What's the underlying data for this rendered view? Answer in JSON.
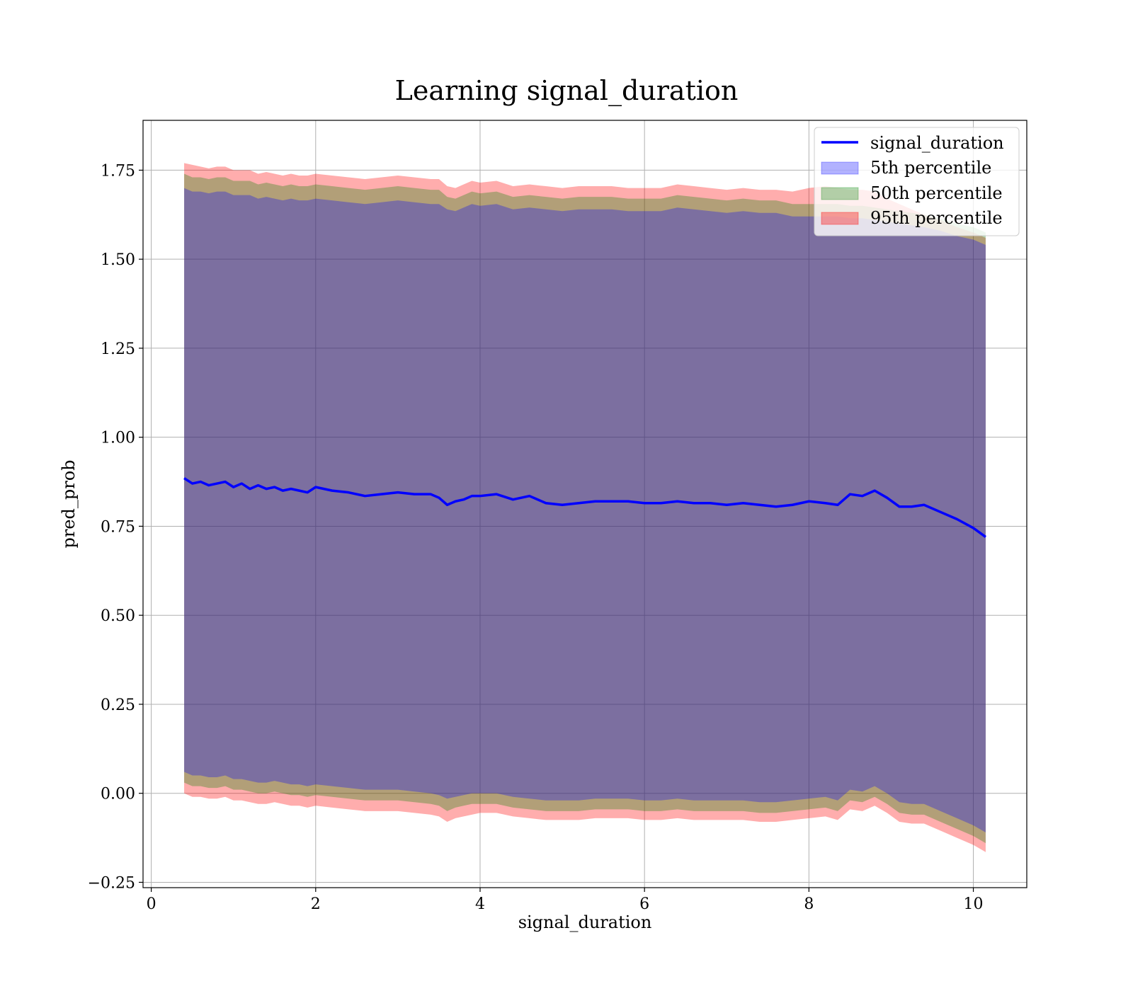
{
  "chart_data": {
    "type": "line",
    "title": "Learning signal_duration",
    "xlabel": "signal_duration",
    "ylabel": "pred_prob",
    "xlim": [
      -0.1,
      10.65
    ],
    "ylim": [
      -0.265,
      1.89
    ],
    "x_ticks": [
      0,
      2,
      4,
      6,
      8,
      10
    ],
    "y_ticks": [
      -0.25,
      0.0,
      0.25,
      0.5,
      0.75,
      1.0,
      1.25,
      1.5,
      1.75
    ],
    "x_tick_labels": [
      "0",
      "2",
      "4",
      "6",
      "8",
      "10"
    ],
    "y_tick_labels": [
      "−0.25",
      "0.00",
      "0.25",
      "0.50",
      "0.75",
      "1.00",
      "1.25",
      "1.50",
      "1.75"
    ],
    "grid": true,
    "legend_position": "top-right",
    "colors": {
      "line": "#0000ff",
      "band_5th": "#0000ff",
      "band_50th": "#008000",
      "band_95th": "#ff0000"
    },
    "x": [
      0.4,
      0.5,
      0.6,
      0.7,
      0.8,
      0.9,
      1.0,
      1.1,
      1.2,
      1.3,
      1.4,
      1.5,
      1.6,
      1.7,
      1.8,
      1.9,
      2.0,
      2.2,
      2.4,
      2.6,
      2.8,
      3.0,
      3.2,
      3.4,
      3.5,
      3.6,
      3.7,
      3.8,
      3.9,
      4.0,
      4.2,
      4.4,
      4.6,
      4.8,
      5.0,
      5.2,
      5.4,
      5.6,
      5.8,
      6.0,
      6.2,
      6.4,
      6.6,
      6.8,
      7.0,
      7.2,
      7.4,
      7.6,
      7.8,
      8.0,
      8.2,
      8.35,
      8.5,
      8.65,
      8.8,
      8.95,
      9.1,
      9.25,
      9.4,
      9.6,
      9.8,
      10.0,
      10.15
    ],
    "series": [
      {
        "name": "signal_duration",
        "values": [
          0.885,
          0.87,
          0.875,
          0.865,
          0.87,
          0.875,
          0.86,
          0.87,
          0.855,
          0.865,
          0.855,
          0.86,
          0.85,
          0.855,
          0.85,
          0.845,
          0.86,
          0.85,
          0.845,
          0.835,
          0.84,
          0.845,
          0.84,
          0.84,
          0.83,
          0.81,
          0.82,
          0.825,
          0.835,
          0.835,
          0.84,
          0.825,
          0.835,
          0.815,
          0.81,
          0.815,
          0.82,
          0.82,
          0.82,
          0.815,
          0.815,
          0.82,
          0.815,
          0.815,
          0.81,
          0.815,
          0.81,
          0.805,
          0.81,
          0.82,
          0.815,
          0.81,
          0.84,
          0.835,
          0.85,
          0.83,
          0.805,
          0.805,
          0.81,
          0.79,
          0.77,
          0.745,
          0.72
        ]
      },
      {
        "name": "5th percentile",
        "lower": [
          0.06,
          0.05,
          0.05,
          0.045,
          0.045,
          0.05,
          0.04,
          0.04,
          0.035,
          0.03,
          0.03,
          0.035,
          0.03,
          0.025,
          0.025,
          0.02,
          0.025,
          0.02,
          0.015,
          0.01,
          0.01,
          0.01,
          0.005,
          0.0,
          -0.005,
          -0.015,
          -0.01,
          -0.005,
          0.0,
          0.0,
          0.0,
          -0.01,
          -0.015,
          -0.02,
          -0.02,
          -0.02,
          -0.015,
          -0.015,
          -0.015,
          -0.02,
          -0.02,
          -0.015,
          -0.02,
          -0.02,
          -0.02,
          -0.02,
          -0.025,
          -0.025,
          -0.02,
          -0.015,
          -0.01,
          -0.02,
          0.01,
          0.005,
          0.02,
          0.0,
          -0.025,
          -0.03,
          -0.03,
          -0.05,
          -0.07,
          -0.09,
          -0.11
        ],
        "upper": [
          1.7,
          1.69,
          1.69,
          1.685,
          1.69,
          1.69,
          1.68,
          1.68,
          1.68,
          1.67,
          1.675,
          1.67,
          1.665,
          1.67,
          1.665,
          1.665,
          1.67,
          1.665,
          1.66,
          1.655,
          1.66,
          1.665,
          1.66,
          1.655,
          1.655,
          1.64,
          1.635,
          1.645,
          1.655,
          1.65,
          1.655,
          1.64,
          1.645,
          1.64,
          1.635,
          1.64,
          1.64,
          1.64,
          1.635,
          1.635,
          1.635,
          1.645,
          1.64,
          1.635,
          1.63,
          1.635,
          1.63,
          1.63,
          1.62,
          1.62,
          1.62,
          1.62,
          1.615,
          1.615,
          1.61,
          1.605,
          1.6,
          1.595,
          1.59,
          1.58,
          1.565,
          1.555,
          1.54
        ]
      },
      {
        "name": "50th percentile",
        "lower": [
          0.03,
          0.02,
          0.02,
          0.015,
          0.015,
          0.02,
          0.01,
          0.01,
          0.005,
          0.0,
          0.0,
          0.005,
          0.0,
          -0.005,
          -0.005,
          -0.01,
          -0.005,
          -0.01,
          -0.015,
          -0.02,
          -0.02,
          -0.02,
          -0.025,
          -0.03,
          -0.035,
          -0.05,
          -0.04,
          -0.035,
          -0.03,
          -0.03,
          -0.03,
          -0.04,
          -0.045,
          -0.05,
          -0.05,
          -0.05,
          -0.045,
          -0.045,
          -0.045,
          -0.05,
          -0.05,
          -0.045,
          -0.05,
          -0.05,
          -0.05,
          -0.05,
          -0.055,
          -0.055,
          -0.05,
          -0.045,
          -0.04,
          -0.05,
          -0.02,
          -0.025,
          -0.01,
          -0.03,
          -0.055,
          -0.06,
          -0.06,
          -0.08,
          -0.1,
          -0.12,
          -0.14
        ],
        "upper": [
          1.74,
          1.73,
          1.73,
          1.725,
          1.73,
          1.73,
          1.72,
          1.72,
          1.72,
          1.71,
          1.715,
          1.71,
          1.705,
          1.71,
          1.705,
          1.705,
          1.71,
          1.705,
          1.7,
          1.695,
          1.7,
          1.705,
          1.7,
          1.695,
          1.695,
          1.675,
          1.67,
          1.68,
          1.69,
          1.685,
          1.69,
          1.675,
          1.68,
          1.675,
          1.67,
          1.675,
          1.675,
          1.675,
          1.67,
          1.67,
          1.67,
          1.68,
          1.675,
          1.67,
          1.665,
          1.67,
          1.665,
          1.665,
          1.655,
          1.655,
          1.655,
          1.655,
          1.65,
          1.65,
          1.645,
          1.64,
          1.635,
          1.63,
          1.625,
          1.615,
          1.6,
          1.59,
          1.575
        ]
      },
      {
        "name": "95th percentile",
        "lower": [
          0.0,
          -0.01,
          -0.01,
          -0.015,
          -0.015,
          -0.01,
          -0.02,
          -0.02,
          -0.025,
          -0.03,
          -0.03,
          -0.025,
          -0.03,
          -0.035,
          -0.035,
          -0.04,
          -0.035,
          -0.04,
          -0.045,
          -0.05,
          -0.05,
          -0.05,
          -0.055,
          -0.06,
          -0.065,
          -0.08,
          -0.07,
          -0.065,
          -0.06,
          -0.055,
          -0.055,
          -0.065,
          -0.07,
          -0.075,
          -0.075,
          -0.075,
          -0.07,
          -0.07,
          -0.07,
          -0.075,
          -0.075,
          -0.07,
          -0.075,
          -0.075,
          -0.075,
          -0.075,
          -0.08,
          -0.08,
          -0.075,
          -0.07,
          -0.065,
          -0.075,
          -0.045,
          -0.05,
          -0.035,
          -0.055,
          -0.08,
          -0.085,
          -0.085,
          -0.105,
          -0.125,
          -0.145,
          -0.165
        ],
        "upper": [
          1.77,
          1.765,
          1.76,
          1.755,
          1.76,
          1.76,
          1.75,
          1.75,
          1.75,
          1.74,
          1.745,
          1.74,
          1.735,
          1.74,
          1.735,
          1.735,
          1.74,
          1.735,
          1.73,
          1.725,
          1.73,
          1.735,
          1.73,
          1.725,
          1.725,
          1.705,
          1.7,
          1.71,
          1.72,
          1.715,
          1.72,
          1.705,
          1.71,
          1.705,
          1.7,
          1.705,
          1.705,
          1.705,
          1.7,
          1.7,
          1.7,
          1.71,
          1.705,
          1.7,
          1.695,
          1.7,
          1.695,
          1.695,
          1.69,
          1.7,
          1.705,
          1.7,
          1.695,
          1.695,
          1.69,
          1.67,
          1.655,
          1.64,
          1.625,
          1.61,
          1.59,
          1.575,
          1.56
        ]
      }
    ]
  }
}
